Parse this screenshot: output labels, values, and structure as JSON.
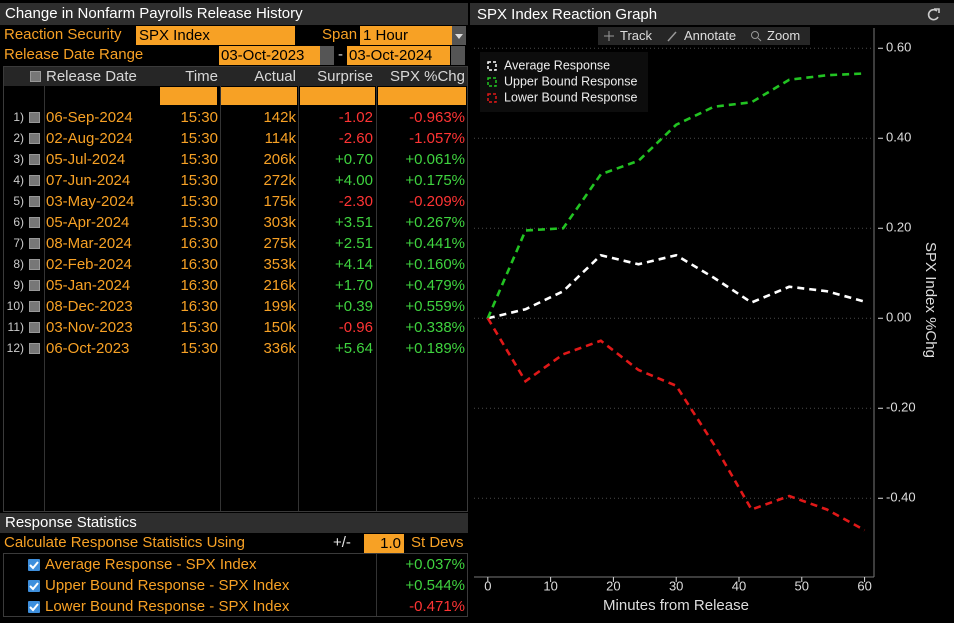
{
  "history": {
    "title": "Change in Nonfarm Payrolls Release History",
    "security_label": "Reaction Security",
    "security": "SPX Index",
    "span_label": "Span",
    "span": "1 Hour",
    "range_label": "Release Date Range",
    "range_start": "03-Oct-2023",
    "range_sep": "-",
    "range_end": "03-Oct-2024",
    "table": {
      "columns": [
        "Release Date",
        "Time",
        "Actual",
        "Surprise",
        "SPX %Chg"
      ],
      "rows": [
        [
          "1)",
          "06-Sep-2024",
          "15:30",
          "142k",
          "-1.02",
          "-0.963%"
        ],
        [
          "2)",
          "02-Aug-2024",
          "15:30",
          "114k",
          "-2.60",
          "-1.057%"
        ],
        [
          "3)",
          "05-Jul-2024",
          "15:30",
          "206k",
          "+0.70",
          "+0.061%"
        ],
        [
          "4)",
          "07-Jun-2024",
          "15:30",
          "272k",
          "+4.00",
          "+0.175%"
        ],
        [
          "5)",
          "03-May-2024",
          "15:30",
          "175k",
          "-2.30",
          "-0.209%"
        ],
        [
          "6)",
          "05-Apr-2024",
          "15:30",
          "303k",
          "+3.51",
          "+0.267%"
        ],
        [
          "7)",
          "08-Mar-2024",
          "16:30",
          "275k",
          "+2.51",
          "+0.441%"
        ],
        [
          "8)",
          "02-Feb-2024",
          "16:30",
          "353k",
          "+4.14",
          "+0.160%"
        ],
        [
          "9)",
          "05-Jan-2024",
          "16:30",
          "216k",
          "+1.70",
          "+0.479%"
        ],
        [
          "10)",
          "08-Dec-2023",
          "16:30",
          "199k",
          "+0.39",
          "+0.559%"
        ],
        [
          "11)",
          "03-Nov-2023",
          "15:30",
          "150k",
          "-0.96",
          "+0.338%"
        ],
        [
          "12)",
          "06-Oct-2023",
          "15:30",
          "336k",
          "+5.64",
          "+0.189%"
        ]
      ]
    },
    "stats": {
      "title": "Response Statistics",
      "calc_label": "Calculate Response Statistics Using",
      "pm": "+/-",
      "sd": "1.0",
      "sd_label": "St Devs",
      "rows": [
        [
          "Average Response - SPX Index",
          "+0.037%"
        ],
        [
          "Upper Bound Response - SPX Index",
          "+0.544%"
        ],
        [
          "Lower Bound Response - SPX Index",
          "-0.471%"
        ]
      ]
    }
  },
  "graph": {
    "title": "SPX Index Reaction Graph",
    "tools": [
      "Track",
      "Annotate",
      "Zoom"
    ]
  },
  "chart_data": {
    "type": "line",
    "xlabel": "Minutes from Release",
    "ylabel": "SPX Index %Chg",
    "x": [
      0,
      6,
      12,
      18,
      24,
      30,
      36,
      42,
      48,
      54,
      60
    ],
    "series": [
      {
        "name": "Average Response",
        "color": "#ffffff",
        "values": [
          0,
          0.02,
          0.06,
          0.14,
          0.12,
          0.14,
          0.09,
          0.035,
          0.07,
          0.06,
          0.037
        ]
      },
      {
        "name": "Upper Bound Response",
        "color": "#22c322",
        "values": [
          0,
          0.195,
          0.2,
          0.32,
          0.35,
          0.43,
          0.47,
          0.48,
          0.53,
          0.54,
          0.544
        ]
      },
      {
        "name": "Lower Bound Response",
        "color": "#e01818",
        "values": [
          0,
          -0.14,
          -0.08,
          -0.05,
          -0.115,
          -0.15,
          -0.28,
          -0.425,
          -0.395,
          -0.425,
          -0.471
        ]
      }
    ],
    "xlim": [
      -2.2,
      61.5
    ],
    "ylim": [
      -0.575,
      0.645
    ],
    "xticks": [
      0,
      10,
      20,
      30,
      40,
      50,
      60
    ],
    "yticks": [
      {
        "value": -0.4,
        "label": "-0.40"
      },
      {
        "value": -0.2,
        "label": "-0.20"
      },
      {
        "value": 0,
        "label": "0.00"
      },
      {
        "value": 0.2,
        "label": "0.20"
      },
      {
        "value": 0.4,
        "label": "0.40"
      },
      {
        "value": 0.6,
        "label": "0.60"
      }
    ],
    "grid": true,
    "legend": "upper left"
  }
}
